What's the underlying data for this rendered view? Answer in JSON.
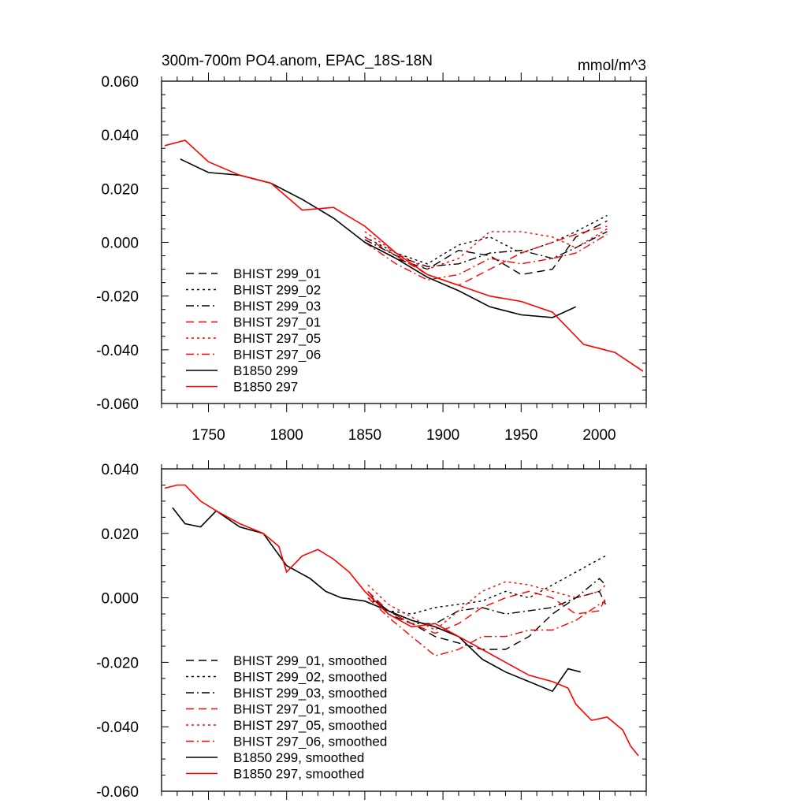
{
  "chart_data": [
    {
      "type": "line",
      "title": "300m-700m PO4.anom, EPAC_18S-18N",
      "units": "mmol/m^3",
      "xlabel": "",
      "ylabel": "",
      "xlim": [
        1720,
        2030
      ],
      "ylim": [
        -0.06,
        0.06
      ],
      "x_ticks": [
        1750,
        1800,
        1850,
        1900,
        1950,
        2000
      ],
      "x_tick_labels": [
        "1750",
        "1800",
        "1850",
        "1900",
        "1950",
        "2000"
      ],
      "y_ticks": [
        0.06,
        0.04,
        0.02,
        0.0,
        -0.02,
        -0.04,
        -0.06
      ],
      "y_tick_labels": [
        "0.060",
        "0.040",
        "0.020",
        "0.000",
        "-0.020",
        "-0.040",
        "-0.060"
      ],
      "legend_position": "bottom-left",
      "series": [
        {
          "name": "BHIST 299_01",
          "color": "#000000",
          "dash": "dashed",
          "x": [
            1850,
            1870,
            1890,
            1910,
            1930,
            1950,
            1970,
            1985,
            2005
          ],
          "y": [
            0.0,
            -0.006,
            -0.01,
            -0.003,
            -0.005,
            -0.012,
            -0.01,
            0.002,
            0.008
          ]
        },
        {
          "name": "BHIST 299_02",
          "color": "#000000",
          "dash": "dotted",
          "x": [
            1850,
            1870,
            1890,
            1910,
            1930,
            1950,
            1970,
            1985,
            2005
          ],
          "y": [
            0.002,
            -0.004,
            -0.008,
            -0.001,
            0.002,
            -0.004,
            0.0,
            0.004,
            0.01
          ]
        },
        {
          "name": "BHIST 299_03",
          "color": "#000000",
          "dash": "dashdot",
          "x": [
            1850,
            1870,
            1890,
            1910,
            1930,
            1950,
            1970,
            1985,
            2005
          ],
          "y": [
            0.001,
            -0.005,
            -0.009,
            -0.008,
            -0.004,
            -0.003,
            -0.006,
            -0.002,
            0.004
          ]
        },
        {
          "name": "BHIST 297_01",
          "color": "#ff0000",
          "dash": "dashed",
          "x": [
            1850,
            1870,
            1890,
            1910,
            1930,
            1950,
            1970,
            1985,
            2005
          ],
          "y": [
            0.002,
            -0.005,
            -0.012,
            -0.016,
            -0.01,
            -0.004,
            0.0,
            0.003,
            0.006
          ]
        },
        {
          "name": "BHIST 297_05",
          "color": "#ff0000",
          "dash": "dotted",
          "x": [
            1850,
            1870,
            1890,
            1910,
            1930,
            1950,
            1970,
            1985,
            2005
          ],
          "y": [
            0.004,
            -0.004,
            -0.01,
            -0.006,
            0.004,
            0.004,
            0.002,
            -0.002,
            0.005
          ]
        },
        {
          "name": "BHIST 297_06",
          "color": "#ff0000",
          "dash": "dashdot",
          "x": [
            1850,
            1870,
            1890,
            1910,
            1930,
            1950,
            1970,
            1985,
            2005
          ],
          "y": [
            0.0,
            -0.008,
            -0.014,
            -0.012,
            -0.006,
            -0.008,
            -0.006,
            -0.004,
            0.003
          ]
        },
        {
          "name": "B1850 299",
          "color": "#000000",
          "dash": "solid",
          "x": [
            1732,
            1750,
            1770,
            1790,
            1810,
            1830,
            1850,
            1870,
            1890,
            1910,
            1930,
            1950,
            1970,
            1985
          ],
          "y": [
            0.031,
            0.026,
            0.025,
            0.022,
            0.016,
            0.009,
            0.0,
            -0.006,
            -0.013,
            -0.018,
            -0.024,
            -0.027,
            -0.028,
            -0.024
          ]
        },
        {
          "name": "B1850 297",
          "color": "#ff0000",
          "dash": "solid",
          "x": [
            1722,
            1735,
            1750,
            1770,
            1790,
            1810,
            1830,
            1850,
            1870,
            1890,
            1910,
            1930,
            1950,
            1970,
            1990,
            2010,
            2028
          ],
          "y": [
            0.036,
            0.038,
            0.03,
            0.025,
            0.022,
            0.012,
            0.013,
            0.006,
            -0.004,
            -0.012,
            -0.016,
            -0.02,
            -0.022,
            -0.026,
            -0.038,
            -0.041,
            -0.048
          ]
        }
      ]
    },
    {
      "type": "line",
      "title": "",
      "xlim": [
        1720,
        2030
      ],
      "ylim": [
        -0.06,
        0.04
      ],
      "x_ticks": [
        1750,
        1800,
        1850,
        1900,
        1950,
        2000
      ],
      "y_ticks": [
        0.04,
        0.02,
        0.0,
        -0.02,
        -0.04,
        -0.06
      ],
      "y_tick_labels": [
        "0.040",
        "0.020",
        "0.000",
        "-0.020",
        "-0.040",
        "-0.060"
      ],
      "legend_position": "bottom-left",
      "series": [
        {
          "name": "BHIST 299_01, smoothed",
          "color": "#000000",
          "dash": "dashed",
          "x": [
            1852,
            1865,
            1880,
            1895,
            1910,
            1925,
            1940,
            1955,
            1970,
            1985,
            2000,
            2004
          ],
          "y": [
            0.002,
            -0.005,
            -0.008,
            -0.012,
            -0.014,
            -0.016,
            -0.016,
            -0.012,
            -0.005,
            0.0,
            0.002,
            -0.002
          ]
        },
        {
          "name": "BHIST 299_02, smoothed",
          "color": "#000000",
          "dash": "dotted",
          "x": [
            1852,
            1865,
            1880,
            1895,
            1910,
            1925,
            1940,
            1955,
            1970,
            1985,
            2000,
            2004
          ],
          "y": [
            0.0,
            -0.004,
            -0.005,
            -0.003,
            -0.002,
            -0.001,
            0.002,
            0.0,
            0.004,
            0.008,
            0.012,
            0.013
          ]
        },
        {
          "name": "BHIST 299_03, smoothed",
          "color": "#000000",
          "dash": "dashdot",
          "x": [
            1852,
            1865,
            1880,
            1895,
            1910,
            1925,
            1940,
            1955,
            1970,
            1985,
            2000,
            2004
          ],
          "y": [
            0.001,
            -0.004,
            -0.008,
            -0.008,
            -0.004,
            -0.003,
            -0.005,
            -0.004,
            -0.003,
            0.0,
            0.006,
            0.004
          ]
        },
        {
          "name": "BHIST 297_01, smoothed",
          "color": "#ff0000",
          "dash": "dashed",
          "x": [
            1852,
            1865,
            1880,
            1895,
            1910,
            1925,
            1940,
            1955,
            1970,
            1985,
            2000,
            2004
          ],
          "y": [
            0.002,
            -0.004,
            -0.008,
            -0.011,
            -0.008,
            -0.003,
            0.0,
            0.002,
            0.0,
            -0.005,
            -0.004,
            0.0
          ]
        },
        {
          "name": "BHIST 297_05, smoothed",
          "color": "#ff0000",
          "dash": "dotted",
          "x": [
            1852,
            1865,
            1880,
            1895,
            1910,
            1925,
            1940,
            1955,
            1970,
            1985,
            2000,
            2004
          ],
          "y": [
            0.004,
            -0.002,
            -0.006,
            -0.01,
            -0.004,
            0.002,
            0.005,
            0.004,
            0.002,
            0.0,
            0.002,
            0.004
          ]
        },
        {
          "name": "BHIST 297_06, smoothed",
          "color": "#ff0000",
          "dash": "dashdot",
          "x": [
            1852,
            1865,
            1880,
            1895,
            1910,
            1925,
            1940,
            1955,
            1970,
            1985,
            2000,
            2004
          ],
          "y": [
            0.0,
            -0.006,
            -0.012,
            -0.018,
            -0.016,
            -0.012,
            -0.012,
            -0.01,
            -0.01,
            -0.007,
            -0.002,
            -0.001
          ]
        },
        {
          "name": "B1850 299, smoothed",
          "color": "#000000",
          "dash": "solid",
          "x": [
            1727,
            1735,
            1745,
            1755,
            1770,
            1785,
            1800,
            1815,
            1825,
            1835,
            1850,
            1865,
            1880,
            1895,
            1910,
            1925,
            1940,
            1955,
            1970,
            1980,
            1988
          ],
          "y": [
            0.028,
            0.023,
            0.022,
            0.027,
            0.022,
            0.02,
            0.01,
            0.006,
            0.002,
            0.0,
            -0.001,
            -0.004,
            -0.007,
            -0.009,
            -0.012,
            -0.019,
            -0.023,
            -0.026,
            -0.029,
            -0.022,
            -0.023
          ]
        },
        {
          "name": "B1850 297, smoothed",
          "color": "#ff0000",
          "dash": "solid",
          "x": [
            1722,
            1730,
            1735,
            1745,
            1755,
            1770,
            1785,
            1795,
            1800,
            1810,
            1820,
            1830,
            1840,
            1850,
            1865,
            1880,
            1895,
            1910,
            1925,
            1940,
            1955,
            1970,
            1980,
            1985,
            1995,
            2005,
            2015,
            2020,
            2025
          ],
          "y": [
            0.034,
            0.035,
            0.035,
            0.03,
            0.027,
            0.023,
            0.02,
            0.016,
            0.008,
            0.013,
            0.015,
            0.012,
            0.008,
            0.002,
            -0.005,
            -0.009,
            -0.008,
            -0.012,
            -0.016,
            -0.02,
            -0.024,
            -0.026,
            -0.028,
            -0.033,
            -0.038,
            -0.037,
            -0.041,
            -0.046,
            -0.049
          ]
        }
      ]
    }
  ]
}
